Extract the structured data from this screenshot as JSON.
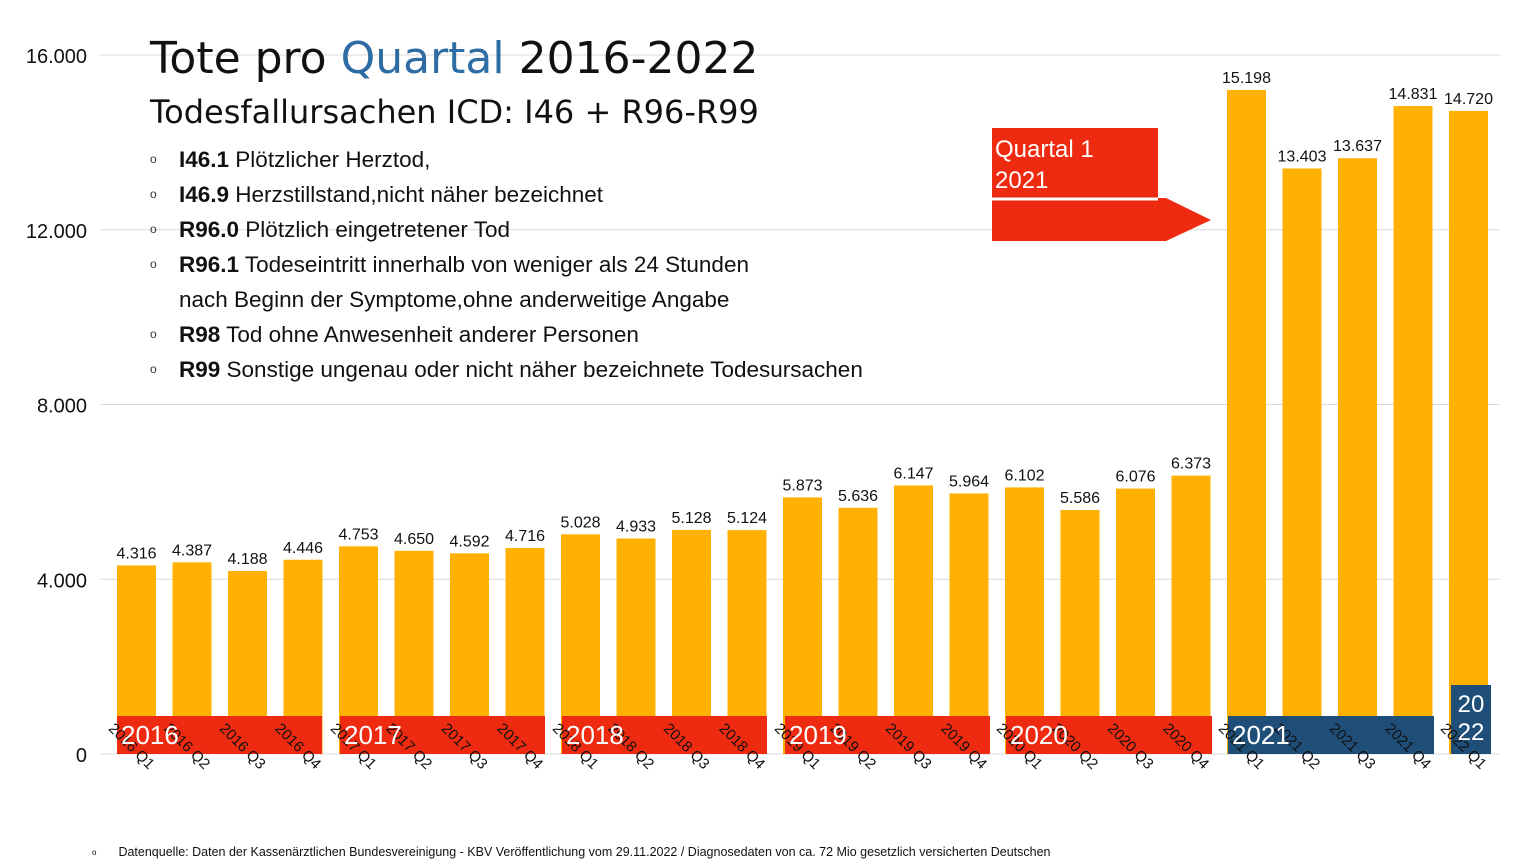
{
  "title": {
    "part1": "Tote pro ",
    "part2": "Quartal",
    "part3": " 2016-2022"
  },
  "subtitle": "Todesfallursachen ICD: I46 + R96-R99",
  "icd_items": [
    {
      "code": "I46.1",
      "text": " Plötzlicher Herztod,"
    },
    {
      "code": "I46.9",
      "text": " Herzstillstand,nicht näher bezeichnet"
    },
    {
      "code": "R96.0",
      "text": " Plötzlich eingetretener Tod"
    },
    {
      "code": "R96.1",
      "text": " Todeseintritt innerhalb von weniger als 24 Stunden",
      "cont": "nach Beginn der Symptome,ohne anderweitige Angabe"
    },
    {
      "code": "R98",
      "text": " Tod ohne Anwesenheit anderer Personen"
    },
    {
      "code": "R99",
      "text": " Sonstige ungenau oder nicht näher bezeichnete Todesursachen"
    }
  ],
  "bullet_glyph": "o",
  "callout": {
    "line1": "Quartal 1",
    "line2": "2021"
  },
  "year_labels": {
    "y2016": "2016",
    "y2017": "2017",
    "y2018": "2018",
    "y2019": "2019",
    "y2020": "2020",
    "y2021": "2021",
    "y2022_top": "20",
    "y2022_bottom": "22"
  },
  "source": "Datenquelle: Daten der Kassenärztlichen Bundesvereinigung - KBV Veröffentlichung vom 29.11.2022 / Diagnosedaten von ca. 72 Mio gesetzlich versicherten Deutschen",
  "colors": {
    "bar": "#ffb000",
    "band_red": "#ee2a10",
    "band_blue": "#1f4e79",
    "grid": "#d9d9d9",
    "accent": "#2e6da4"
  },
  "chart_data": {
    "type": "bar",
    "categories": [
      "2016 Q1",
      "2016 Q2",
      "2016 Q3",
      "2016 Q4",
      "2017 Q1",
      "2017 Q2",
      "2017 Q3",
      "2017 Q4",
      "2018 Q1",
      "2018 Q2",
      "2018 Q3",
      "2018 Q4",
      "2019 Q1",
      "2019 Q2",
      "2019 Q3",
      "2019 Q4",
      "2020 Q1",
      "2020 Q2",
      "2020 Q3",
      "2020 Q4",
      "2021 Q1",
      "2021 Q2",
      "2021 Q3",
      "2021 Q4",
      "2022 Q1"
    ],
    "values": [
      4316,
      4387,
      4188,
      4446,
      4753,
      4650,
      4592,
      4716,
      5028,
      4933,
      5128,
      5124,
      5873,
      5636,
      6147,
      5964,
      6102,
      5586,
      6076,
      6373,
      15198,
      13403,
      13637,
      14831,
      14720
    ],
    "value_labels": [
      "4.316",
      "4.387",
      "4.188",
      "4.446",
      "4.753",
      "4.650",
      "4.592",
      "4.716",
      "5.028",
      "4.933",
      "5.128",
      "5.124",
      "5.873",
      "5.636",
      "6.147",
      "5.964",
      "6.102",
      "5.586",
      "6.076",
      "6.373",
      "15.198",
      "13.403",
      "13.637",
      "14.831",
      "14.720"
    ],
    "yticks": [
      0,
      4000,
      8000,
      12000,
      16000
    ],
    "ytick_labels": [
      "0",
      "4.000",
      "8.000",
      "12.000",
      "16.000"
    ],
    "ylim": [
      0,
      16000
    ],
    "grid": true
  }
}
